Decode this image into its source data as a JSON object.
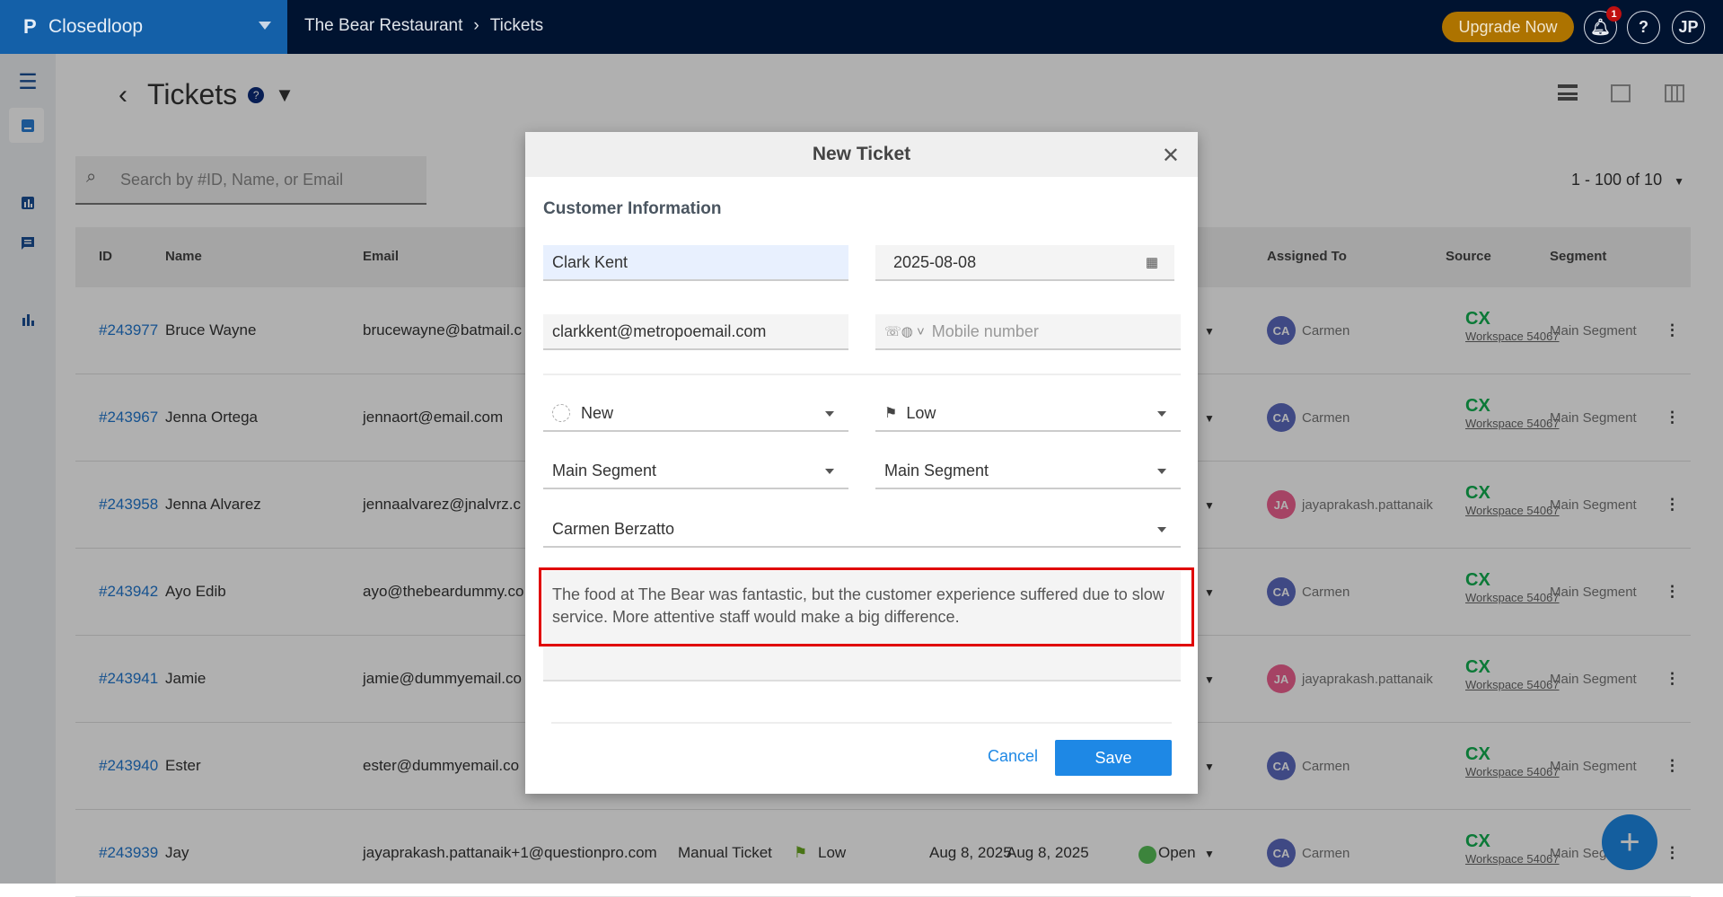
{
  "topbar": {
    "brand": "Closedloop",
    "breadcrumb": [
      "The Bear Restaurant",
      "Tickets"
    ],
    "upgrade": "Upgrade Now",
    "notifications": "1",
    "help": "?",
    "user": "JP"
  },
  "page": {
    "title": "Tickets",
    "search_placeholder": "Search by #ID, Name, or Email",
    "pagination": "1 - 100 of 10"
  },
  "table": {
    "headers": {
      "id": "ID",
      "name": "Name",
      "email": "Email",
      "assigned": "Assigned To",
      "source": "Source",
      "segment": "Segment"
    },
    "rows": [
      {
        "id": "#243977",
        "name": "Bruce Wayne",
        "email": "brucewayne@batmail.c",
        "assignee": "Carmen",
        "initials": "CA",
        "source": "CX",
        "workspace": "Workspace 54067",
        "segment": "Main Segment"
      },
      {
        "id": "#243967",
        "name": "Jenna Ortega",
        "email": "jennaort@email.com",
        "assignee": "Carmen",
        "initials": "CA",
        "source": "CX",
        "workspace": "Workspace 54067",
        "segment": "Main Segment"
      },
      {
        "id": "#243958",
        "name": "Jenna Alvarez",
        "email": "jennaalvarez@jnalvrz.c",
        "assignee": "jayaprakash.pattanaik",
        "initials": "JA",
        "source": "CX",
        "workspace": "Workspace 54067",
        "segment": "Main Segment"
      },
      {
        "id": "#243942",
        "name": "Ayo Edib",
        "email": "ayo@thebeardummy.co",
        "assignee": "Carmen",
        "initials": "CA",
        "source": "CX",
        "workspace": "Workspace 54067",
        "segment": "Main Segment"
      },
      {
        "id": "#243941",
        "name": "Jamie",
        "email": "jamie@dummyemail.co",
        "assignee": "jayaprakash.pattanaik",
        "initials": "JA",
        "source": "CX",
        "workspace": "Workspace 54067",
        "segment": "Main Segment"
      },
      {
        "id": "#243940",
        "name": "Ester",
        "email": "ester@dummyemail.co",
        "assignee": "Carmen",
        "initials": "CA",
        "source": "CX",
        "workspace": "Workspace 54067",
        "segment": "Main Segment"
      },
      {
        "id": "#243939",
        "name": "Jay",
        "email": "jayaprakash.pattanaik+1@questionpro.com",
        "subject": "Manual Ticket",
        "priority": "Low",
        "created": "Aug 8, 2025",
        "updated": "Aug 8, 2025",
        "status": "Open",
        "assignee": "Carmen",
        "initials": "CA",
        "source": "CX",
        "workspace": "Workspace 54067",
        "segment": "Main Seg"
      }
    ]
  },
  "modal": {
    "title": "New Ticket",
    "section": "Customer Information",
    "name": "Clark Kent",
    "date": "2025-08-08",
    "email": "clarkkent@metropoemail.com",
    "mobile_placeholder": "Mobile number",
    "status": "New",
    "priority": "Low",
    "segment1": "Main Segment",
    "segment2": "Main Segment",
    "assignee": "Carmen Berzatto",
    "description": "The food at The Bear was fantastic, but the customer experience suffered due to slow service. More attentive staff would make a big difference.",
    "cancel": "Cancel",
    "save": "Save"
  },
  "colors": {
    "accent": "#1e88e5",
    "brand": "#1460a8",
    "topbar": "#001330",
    "upgrade": "#ad7300",
    "highlight": "#e00000",
    "source": "#10b050"
  }
}
